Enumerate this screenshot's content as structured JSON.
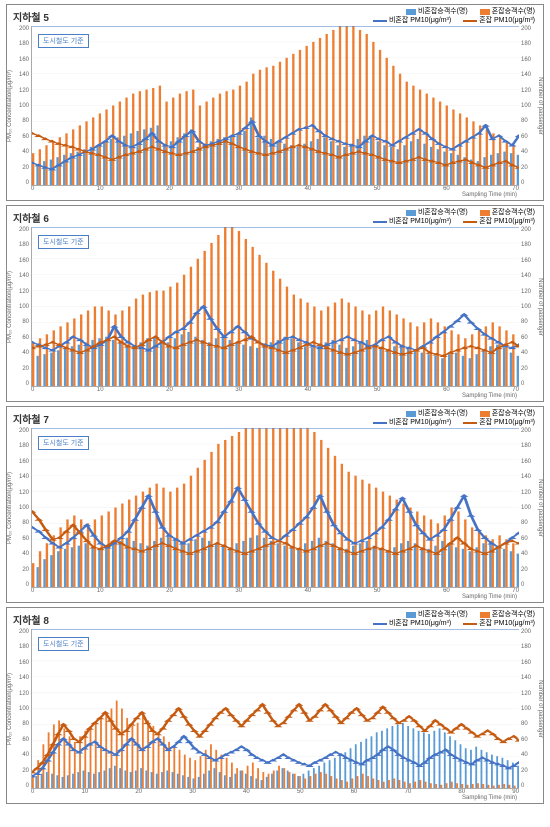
{
  "global": {
    "ylim": [
      0,
      200
    ],
    "ytick_step": 20,
    "y2lim": [
      0,
      200
    ],
    "ylabel_left": "PM₁₀ Concentration(μg/m³)",
    "ylabel_right": "Number of passenger",
    "xlabel": "Sampling Time (min)",
    "threshold_value": 200,
    "threshold_label": "도시철도 기준",
    "threshold_color": "#4a7ec7",
    "colors": {
      "bar_noncongest": "#5b9bd5",
      "bar_congest": "#ed7d31",
      "line_noncongest": "#4472c4",
      "line_congest": "#c55a11",
      "grid": "#e6e6e6",
      "axis": "#888888"
    },
    "legend": {
      "bar_noncongest": "비혼잡승객수(명)",
      "bar_congest": "혼잡승객수(명)",
      "line_noncongest": "비혼잡 PM10(μg/m³)",
      "line_congest": "혼잡 PM10(μg/m³)"
    }
  },
  "charts": [
    {
      "title": "지하철 5",
      "xlim": [
        0,
        74
      ],
      "xtick_step": 10,
      "bar_noncongest": [
        20,
        25,
        30,
        32,
        35,
        38,
        40,
        42,
        45,
        48,
        50,
        55,
        58,
        60,
        62,
        65,
        68,
        70,
        72,
        75,
        50,
        55,
        60,
        65,
        70,
        48,
        52,
        55,
        58,
        60,
        62,
        64,
        68,
        85,
        60,
        62,
        58,
        55,
        52,
        50,
        48,
        52,
        55,
        58,
        60,
        55,
        50,
        48,
        52,
        58,
        62,
        60,
        55,
        50,
        48,
        45,
        50,
        55,
        58,
        52,
        48,
        45,
        42,
        40,
        38,
        35,
        32,
        30,
        35,
        38,
        40,
        42,
        40,
        38
      ],
      "bar_congest": [
        40,
        45,
        50,
        55,
        60,
        65,
        70,
        75,
        80,
        85,
        90,
        95,
        100,
        105,
        110,
        115,
        118,
        120,
        122,
        125,
        105,
        110,
        115,
        118,
        120,
        100,
        105,
        110,
        115,
        118,
        120,
        125,
        130,
        140,
        145,
        148,
        150,
        155,
        160,
        165,
        170,
        175,
        180,
        185,
        190,
        195,
        200,
        200,
        200,
        195,
        190,
        180,
        170,
        160,
        150,
        140,
        130,
        125,
        120,
        115,
        110,
        105,
        100,
        95,
        90,
        85,
        80,
        75,
        70,
        65,
        60,
        55,
        50,
        45
      ],
      "line_noncongest": [
        28,
        25,
        22,
        20,
        25,
        30,
        35,
        38,
        42,
        45,
        50,
        55,
        62,
        55,
        50,
        48,
        52,
        58,
        65,
        55,
        50,
        48,
        55,
        62,
        68,
        55,
        50,
        52,
        55,
        58,
        62,
        65,
        72,
        80,
        62,
        55,
        50,
        55,
        60,
        65,
        70,
        72,
        75,
        68,
        62,
        58,
        55,
        52,
        50,
        48,
        55,
        62,
        58,
        55,
        50,
        55,
        60,
        65,
        70,
        65,
        58,
        52,
        48,
        45,
        50,
        55,
        60,
        65,
        75,
        58,
        62,
        55,
        50,
        62
      ],
      "line_congest": [
        65,
        62,
        58,
        55,
        52,
        50,
        48,
        45,
        42,
        40,
        38,
        35,
        32,
        35,
        38,
        40,
        42,
        45,
        48,
        45,
        42,
        40,
        38,
        40,
        42,
        45,
        48,
        50,
        52,
        55,
        52,
        48,
        45,
        42,
        40,
        38,
        40,
        42,
        45,
        48,
        50,
        48,
        45,
        42,
        40,
        38,
        35,
        38,
        40,
        42,
        40,
        38,
        35,
        32,
        30,
        28,
        30,
        32,
        35,
        32,
        30,
        28,
        25,
        28,
        30,
        32,
        28,
        25,
        22,
        25,
        28,
        30,
        25,
        22
      ]
    },
    {
      "title": "지하철 6",
      "xlim": [
        0,
        72
      ],
      "xtick_step": 10,
      "bar_noncongest": [
        35,
        38,
        40,
        42,
        45,
        48,
        50,
        52,
        55,
        58,
        60,
        62,
        58,
        55,
        52,
        50,
        55,
        60,
        62,
        58,
        55,
        60,
        65,
        68,
        62,
        58,
        55,
        60,
        62,
        58,
        55,
        52,
        50,
        48,
        52,
        55,
        58,
        62,
        60,
        55,
        50,
        48,
        52,
        55,
        58,
        52,
        48,
        50,
        55,
        58,
        52,
        48,
        45,
        50,
        52,
        48,
        45,
        42,
        40,
        38,
        35,
        40,
        42,
        38,
        35,
        40,
        45,
        50,
        52,
        48,
        42,
        38
      ],
      "bar_congest": [
        55,
        60,
        65,
        70,
        75,
        80,
        85,
        90,
        95,
        100,
        100,
        95,
        90,
        95,
        100,
        110,
        115,
        118,
        120,
        120,
        125,
        130,
        140,
        150,
        160,
        170,
        180,
        190,
        200,
        200,
        195,
        185,
        175,
        165,
        155,
        145,
        135,
        125,
        115,
        110,
        105,
        100,
        95,
        100,
        105,
        110,
        105,
        100,
        95,
        90,
        95,
        100,
        95,
        90,
        85,
        80,
        75,
        80,
        85,
        80,
        75,
        70,
        65,
        60,
        65,
        70,
        75,
        80,
        75,
        70,
        65,
        55
      ],
      "line_noncongest": [
        55,
        52,
        48,
        45,
        50,
        55,
        62,
        58,
        52,
        48,
        52,
        58,
        75,
        62,
        55,
        50,
        48,
        45,
        50,
        55,
        62,
        68,
        72,
        80,
        92,
        100,
        85,
        72,
        62,
        68,
        75,
        68,
        60,
        55,
        52,
        50,
        55,
        60,
        62,
        58,
        55,
        50,
        48,
        52,
        55,
        58,
        62,
        58,
        55,
        50,
        52,
        58,
        62,
        55,
        50,
        48,
        45,
        50,
        55,
        62,
        68,
        75,
        82,
        90,
        80,
        72,
        65,
        60,
        55,
        50,
        48,
        52
      ],
      "line_congest": [
        48,
        50,
        52,
        55,
        52,
        48,
        45,
        42,
        45,
        50,
        55,
        58,
        62,
        55,
        50,
        48,
        52,
        58,
        62,
        55,
        50,
        48,
        52,
        55,
        58,
        55,
        52,
        50,
        48,
        52,
        55,
        58,
        62,
        55,
        50,
        48,
        45,
        42,
        45,
        48,
        52,
        55,
        52,
        48,
        45,
        42,
        40,
        42,
        45,
        48,
        50,
        48,
        45,
        42,
        40,
        42,
        45,
        48,
        42,
        40,
        38,
        42,
        45,
        48,
        50,
        48,
        45,
        42,
        48,
        52,
        55,
        50
      ]
    },
    {
      "title": "지하철 7",
      "xlim": [
        0,
        72
      ],
      "xtick_step": 10,
      "bar_noncongest": [
        15,
        25,
        35,
        40,
        45,
        48,
        50,
        52,
        55,
        50,
        48,
        52,
        55,
        58,
        62,
        58,
        55,
        52,
        58,
        62,
        65,
        62,
        58,
        55,
        60,
        62,
        58,
        55,
        52,
        50,
        55,
        58,
        62,
        65,
        62,
        58,
        55,
        52,
        50,
        48,
        55,
        58,
        62,
        58,
        55,
        50,
        48,
        52,
        55,
        58,
        52,
        48,
        45,
        50,
        55,
        58,
        55,
        50,
        48,
        52,
        58,
        55,
        50,
        48,
        45,
        50,
        55,
        58,
        52,
        48,
        45,
        42
      ],
      "bar_congest": [
        30,
        45,
        55,
        65,
        75,
        85,
        90,
        85,
        80,
        85,
        90,
        95,
        100,
        105,
        110,
        115,
        120,
        125,
        130,
        125,
        120,
        125,
        130,
        140,
        150,
        160,
        170,
        180,
        185,
        190,
        195,
        200,
        200,
        200,
        200,
        200,
        200,
        200,
        200,
        200,
        200,
        195,
        185,
        175,
        165,
        155,
        145,
        140,
        135,
        130,
        125,
        120,
        115,
        110,
        105,
        100,
        95,
        90,
        85,
        80,
        90,
        100,
        95,
        85,
        75,
        70,
        65,
        60,
        65,
        60,
        55,
        50
      ],
      "line_noncongest": [
        75,
        70,
        62,
        55,
        50,
        55,
        62,
        70,
        78,
        65,
        55,
        50,
        55,
        62,
        70,
        85,
        100,
        115,
        95,
        75,
        65,
        60,
        55,
        60,
        65,
        70,
        75,
        82,
        95,
        108,
        125,
        110,
        95,
        80,
        70,
        62,
        58,
        65,
        72,
        80,
        88,
        100,
        115,
        95,
        78,
        68,
        60,
        55,
        58,
        62,
        68,
        75,
        85,
        98,
        112,
        95,
        78,
        68,
        60,
        65,
        72,
        85,
        100,
        115,
        90,
        72,
        62,
        55,
        50,
        55,
        62,
        68
      ],
      "line_congest": [
        95,
        85,
        72,
        60,
        62,
        70,
        78,
        68,
        58,
        50,
        48,
        52,
        58,
        55,
        50,
        48,
        45,
        48,
        52,
        55,
        52,
        48,
        45,
        42,
        45,
        48,
        52,
        55,
        52,
        48,
        45,
        42,
        45,
        48,
        52,
        55,
        58,
        55,
        50,
        48,
        45,
        48,
        52,
        55,
        52,
        48,
        45,
        42,
        45,
        48,
        50,
        48,
        45,
        42,
        45,
        48,
        52,
        48,
        45,
        42,
        48,
        55,
        62,
        55,
        48,
        45,
        42,
        45,
        50,
        55,
        58,
        55
      ]
    },
    {
      "title": "지하철 8",
      "xlim": [
        0,
        94
      ],
      "xtick_step": 10,
      "bar_noncongest": [
        12,
        15,
        18,
        20,
        18,
        16,
        14,
        16,
        18,
        20,
        22,
        20,
        18,
        20,
        22,
        25,
        28,
        25,
        22,
        20,
        22,
        25,
        22,
        20,
        18,
        20,
        22,
        20,
        18,
        16,
        14,
        12,
        14,
        18,
        22,
        25,
        20,
        16,
        14,
        18,
        22,
        18,
        15,
        12,
        10,
        14,
        18,
        22,
        25,
        22,
        18,
        15,
        18,
        22,
        25,
        28,
        32,
        35,
        38,
        42,
        45,
        50,
        55,
        58,
        62,
        65,
        70,
        72,
        75,
        78,
        80,
        82,
        78,
        75,
        72,
        70,
        68,
        72,
        75,
        70,
        65,
        60,
        55,
        50,
        48,
        52,
        48,
        45,
        42,
        40,
        38,
        35,
        32,
        28
      ],
      "bar_congest": [
        15,
        35,
        55,
        70,
        80,
        85,
        75,
        65,
        58,
        65,
        72,
        78,
        82,
        88,
        95,
        100,
        110,
        100,
        88,
        78,
        82,
        90,
        85,
        78,
        70,
        65,
        58,
        52,
        48,
        42,
        38,
        35,
        40,
        48,
        55,
        48,
        42,
        38,
        32,
        25,
        22,
        28,
        32,
        25,
        20,
        18,
        22,
        28,
        25,
        20,
        18,
        15,
        12,
        15,
        18,
        20,
        18,
        15,
        12,
        10,
        8,
        12,
        15,
        18,
        15,
        12,
        10,
        8,
        10,
        12,
        10,
        8,
        6,
        8,
        10,
        8,
        6,
        5,
        4,
        6,
        8,
        6,
        5,
        4,
        5,
        6,
        5,
        4,
        3,
        4,
        5,
        4,
        3,
        2
      ],
      "line_noncongest": [
        15,
        18,
        25,
        35,
        45,
        55,
        62,
        55,
        48,
        45,
        50,
        55,
        58,
        52,
        48,
        45,
        42,
        48,
        55,
        62,
        55,
        48,
        52,
        58,
        62,
        55,
        48,
        52,
        58,
        65,
        58,
        50,
        45,
        42,
        38,
        35,
        38,
        42,
        45,
        48,
        52,
        48,
        42,
        38,
        35,
        32,
        35,
        38,
        42,
        38,
        35,
        32,
        30,
        28,
        32,
        35,
        38,
        42,
        45,
        42,
        38,
        35,
        32,
        30,
        35,
        38,
        42,
        48,
        52,
        48,
        42,
        38,
        35,
        32,
        28,
        32,
        38,
        42,
        45,
        48,
        42,
        38,
        35,
        32,
        30,
        35,
        38,
        35,
        32,
        30,
        28,
        25,
        28,
        32
      ],
      "line_congest": [
        20,
        25,
        32,
        42,
        55,
        68,
        80,
        72,
        62,
        58,
        65,
        75,
        82,
        88,
        95,
        85,
        75,
        68,
        72,
        80,
        88,
        95,
        82,
        72,
        68,
        75,
        85,
        92,
        100,
        90,
        80,
        72,
        65,
        72,
        80,
        88,
        95,
        100,
        92,
        85,
        78,
        85,
        92,
        98,
        105,
        95,
        85,
        78,
        82,
        90,
        98,
        105,
        95,
        85,
        90,
        98,
        105,
        98,
        90,
        82,
        88,
        95,
        100,
        92,
        85,
        88,
        95,
        102,
        95,
        88,
        82,
        85,
        90,
        85,
        78,
        72,
        78,
        85,
        80,
        75,
        70,
        75,
        80,
        75,
        70,
        65,
        68,
        72,
        68,
        62,
        58,
        62,
        65,
        60
      ]
    }
  ]
}
